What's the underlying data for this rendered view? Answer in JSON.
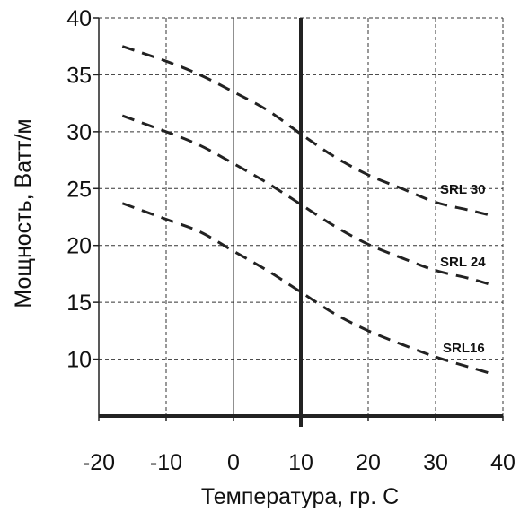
{
  "chart_data": {
    "type": "line",
    "xlabel": "Температура, гр. С",
    "ylabel": "Мощность, Ватт/м",
    "xlim": [
      -20,
      40
    ],
    "ylim": [
      5,
      40
    ],
    "x_ticks": [
      -20,
      -10,
      0,
      10,
      20,
      30,
      40
    ],
    "y_ticks": [
      10,
      15,
      20,
      25,
      30,
      35,
      40
    ],
    "x_tick_labels": [
      "-20",
      "-10",
      "0",
      "10",
      "20",
      "30",
      "40"
    ],
    "y_tick_labels": [
      "10",
      "15",
      "20",
      "25",
      "30",
      "35",
      "40"
    ],
    "grid": true,
    "reference_lines": [
      {
        "axis": "x",
        "value": 10
      }
    ],
    "series": [
      {
        "name": "SRL 30",
        "style": "dashed",
        "x": [
          -16.5,
          -10,
          -5,
          0,
          5,
          10,
          15,
          20,
          25,
          30,
          35,
          38.5
        ],
        "y": [
          37.5,
          36.2,
          35.0,
          33.5,
          31.9,
          29.8,
          27.8,
          26.2,
          25.0,
          23.8,
          23.1,
          22.6
        ]
      },
      {
        "name": "SRL 24",
        "style": "dashed",
        "x": [
          -16.5,
          -10,
          -5,
          0,
          5,
          10,
          15,
          20,
          25,
          30,
          35,
          38.5
        ],
        "y": [
          31.4,
          30.0,
          28.8,
          27.2,
          25.5,
          23.6,
          21.7,
          20.1,
          18.9,
          17.8,
          17.1,
          16.5
        ]
      },
      {
        "name": "SRL16",
        "style": "dashed",
        "x": [
          -16.5,
          -10,
          -5,
          0,
          5,
          10,
          15,
          20,
          25,
          30,
          35,
          38.5
        ],
        "y": [
          23.7,
          22.3,
          21.2,
          19.5,
          17.8,
          15.9,
          14.0,
          12.5,
          11.3,
          10.2,
          9.3,
          8.7
        ]
      }
    ]
  }
}
